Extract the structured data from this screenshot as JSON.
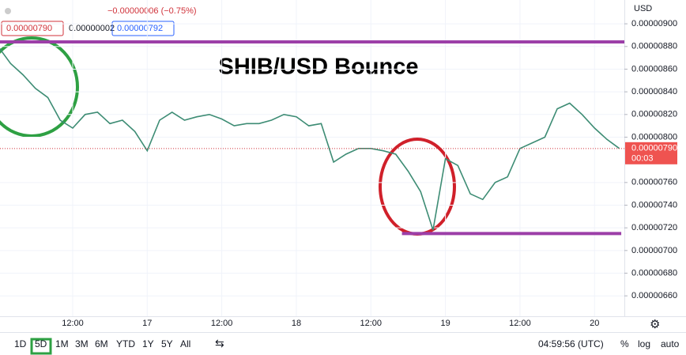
{
  "chart_data": {
    "type": "line",
    "title": "SHIB/USD Bounce",
    "change": "−0.00000006 (−0.75%)",
    "ohlc_boxes": [
      "0.00000790",
      "0.00000002",
      "0.00000792"
    ],
    "currency": "USD",
    "price_tag": {
      "value": 7.9e-06,
      "label": "0.00000790"
    },
    "countdown": "00:03",
    "color": "#3d8c74",
    "x": [
      0,
      2,
      4,
      6,
      8,
      10,
      12,
      14,
      16,
      18,
      20,
      22,
      24,
      26,
      28,
      30,
      32,
      34,
      36,
      38,
      40,
      42,
      44,
      46,
      48,
      50,
      52,
      54,
      56,
      58,
      60,
      62,
      64,
      66,
      68,
      70,
      72,
      74,
      76,
      78,
      80,
      82,
      84,
      86,
      88,
      90,
      92,
      94,
      96,
      98,
      100
    ],
    "values": [
      8.8e-06,
      8.65e-06,
      8.55e-06,
      8.43e-06,
      8.35e-06,
      8.15e-06,
      8.08e-06,
      8.2e-06,
      8.22e-06,
      8.12e-06,
      8.15e-06,
      8.05e-06,
      7.88e-06,
      8.15e-06,
      8.22e-06,
      8.15e-06,
      8.18e-06,
      8.2e-06,
      8.16e-06,
      8.1e-06,
      8.12e-06,
      8.12e-06,
      8.15e-06,
      8.2e-06,
      8.18e-06,
      8.1e-06,
      8.12e-06,
      7.78e-06,
      7.85e-06,
      7.9e-06,
      7.9e-06,
      7.88e-06,
      7.85e-06,
      7.7e-06,
      7.52e-06,
      7.18e-06,
      7.81e-06,
      7.75e-06,
      7.5e-06,
      7.45e-06,
      7.6e-06,
      7.65e-06,
      7.9e-06,
      7.95e-06,
      8e-06,
      8.25e-06,
      8.3e-06,
      8.2e-06,
      8.08e-06,
      7.98e-06,
      7.9e-06
    ],
    "xlim": [
      0.3,
      100.8
    ],
    "xticks": [
      {
        "value": 12,
        "label": "12:00"
      },
      {
        "value": 24,
        "label": "17"
      },
      {
        "value": 36,
        "label": "12:00"
      },
      {
        "value": 48,
        "label": "18"
      },
      {
        "value": 60,
        "label": "12:00"
      },
      {
        "value": 72,
        "label": "19"
      },
      {
        "value": 84,
        "label": "12:00"
      },
      {
        "value": 96,
        "label": "20"
      }
    ],
    "ylim": [
      6.42e-06,
      9.21e-06
    ],
    "yticks": [
      {
        "value": 9e-06,
        "label": "0.00000900"
      },
      {
        "value": 8.8e-06,
        "label": "0.00000880"
      },
      {
        "value": 8.6e-06,
        "label": "0.00000860"
      },
      {
        "value": 8.4e-06,
        "label": "0.00000840"
      },
      {
        "value": 8.2e-06,
        "label": "0.00000820"
      },
      {
        "value": 8e-06,
        "label": "0.00000800"
      },
      {
        "value": 7.6e-06,
        "label": "0.00000760"
      },
      {
        "value": 7.4e-06,
        "label": "0.00000740"
      },
      {
        "value": 7.2e-06,
        "label": "0.00000720"
      },
      {
        "value": 7e-06,
        "label": "0.00000700"
      },
      {
        "value": 6.8e-06,
        "label": "0.00000680"
      },
      {
        "value": 6.6e-06,
        "label": "0.00000660"
      }
    ],
    "grid": true,
    "hlines": [
      {
        "value": 8.84e-06,
        "from": 0.3,
        "to": 100.8,
        "color": "#9c3fa8"
      },
      {
        "value": 7.15e-06,
        "from": 65,
        "to": 100.3,
        "color": "#9c3fa8"
      }
    ],
    "toolbar": {
      "ranges": [
        "1D",
        "5D",
        "1M",
        "3M",
        "6M",
        "YTD",
        "1Y",
        "5Y",
        "All"
      ],
      "time": "04:59:56 (UTC)",
      "options": [
        "%",
        "log",
        "auto"
      ]
    }
  }
}
